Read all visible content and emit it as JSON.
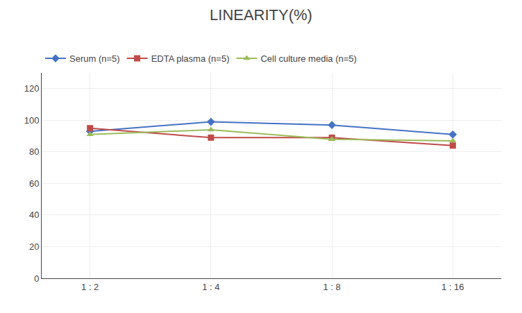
{
  "chart_data": {
    "type": "line",
    "title": "LINEARITY(%)",
    "categories": [
      "1 : 2",
      "1 : 4",
      "1 : 8",
      "1 : 16"
    ],
    "series": [
      {
        "name": "Serum (n=5)",
        "color": "#4472C4",
        "marker": "diamond",
        "values": [
          93,
          99,
          97,
          91
        ]
      },
      {
        "name": "EDTA plasma (n=5)",
        "color": "#BE4B48",
        "marker": "square",
        "values": [
          95,
          89,
          89,
          84
        ]
      },
      {
        "name": "Cell culture media (n=5)",
        "color": "#9BBB59",
        "marker": "triangle-up",
        "values": [
          91,
          94,
          88,
          87
        ]
      }
    ],
    "ylim": [
      0,
      130
    ],
    "yticks": [
      0,
      20,
      40,
      60,
      80,
      100,
      120
    ],
    "grid": true,
    "legend": "top"
  }
}
